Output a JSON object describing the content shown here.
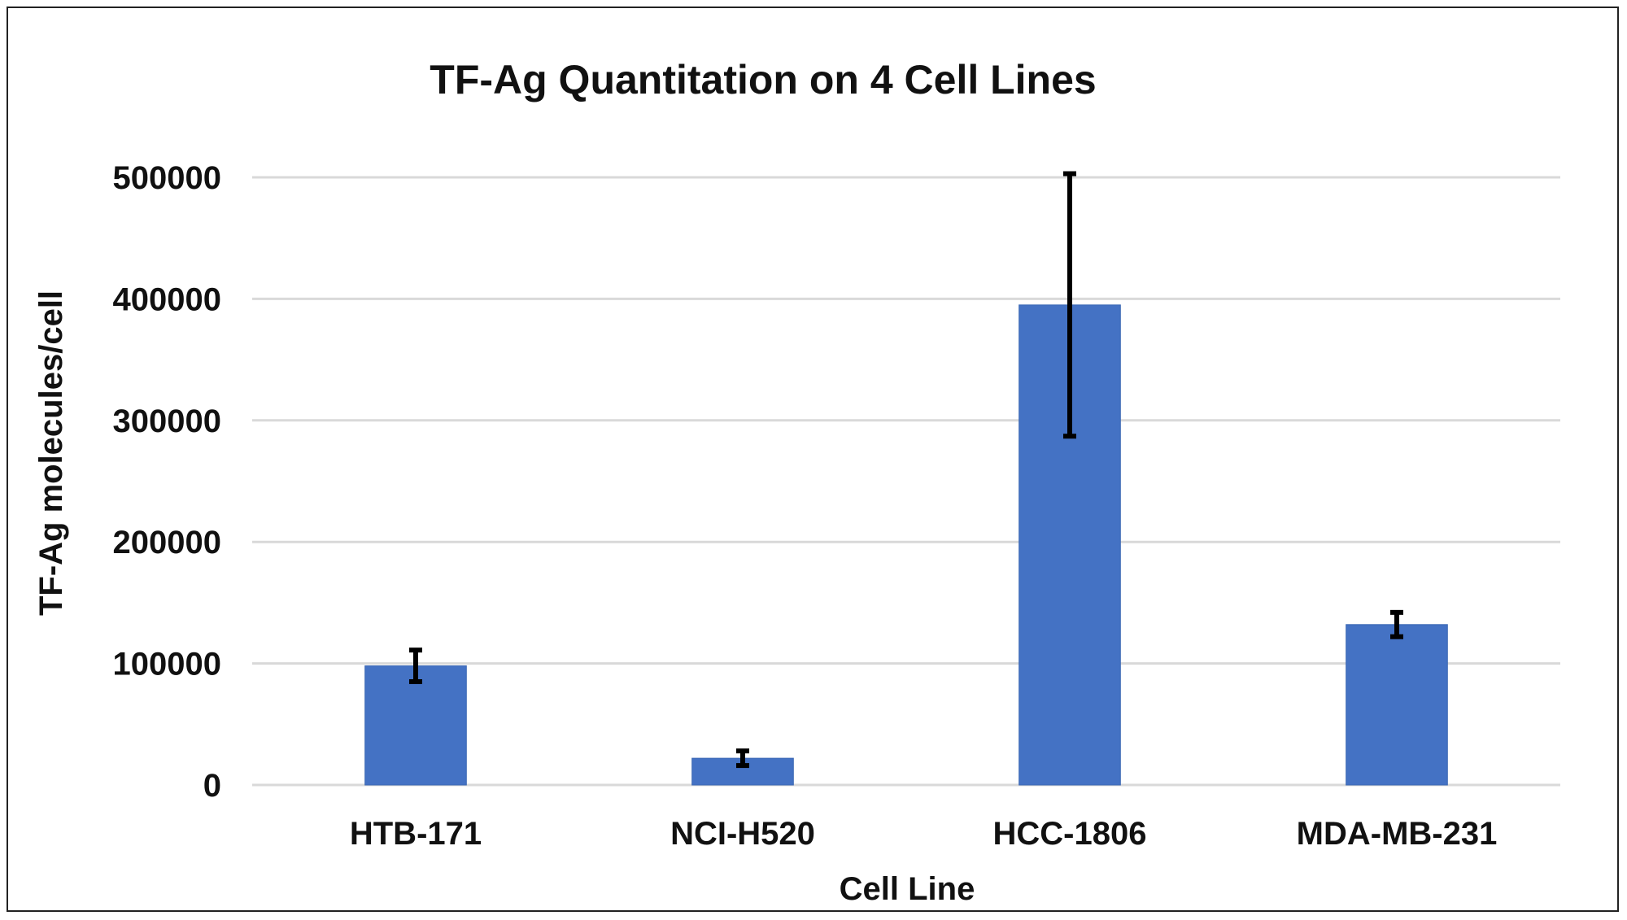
{
  "chart_data": {
    "type": "bar",
    "title": "TF-Ag Quantitation on 4 Cell Lines",
    "xlabel": "Cell Line",
    "ylabel": "TF-Ag molecules/cell",
    "categories": [
      "HTB-171",
      "NCI-H520",
      "HCC-1806",
      "MDA-MB-231"
    ],
    "series": [
      {
        "values": [
          98000,
          22000,
          395000,
          132000
        ],
        "error": [
          13000,
          6000,
          108000,
          10000
        ]
      }
    ],
    "ylim": [
      0,
      500000
    ],
    "yticks": [
      0,
      100000,
      200000,
      300000,
      400000,
      500000
    ],
    "ytick_labels": [
      "0",
      "100000",
      "200000",
      "300000",
      "400000",
      "500000"
    ],
    "grid": true,
    "legend": "none",
    "colors": {
      "bar": "#4472c4",
      "error_bar": "#000000",
      "grid": "#d9d9d9"
    }
  }
}
